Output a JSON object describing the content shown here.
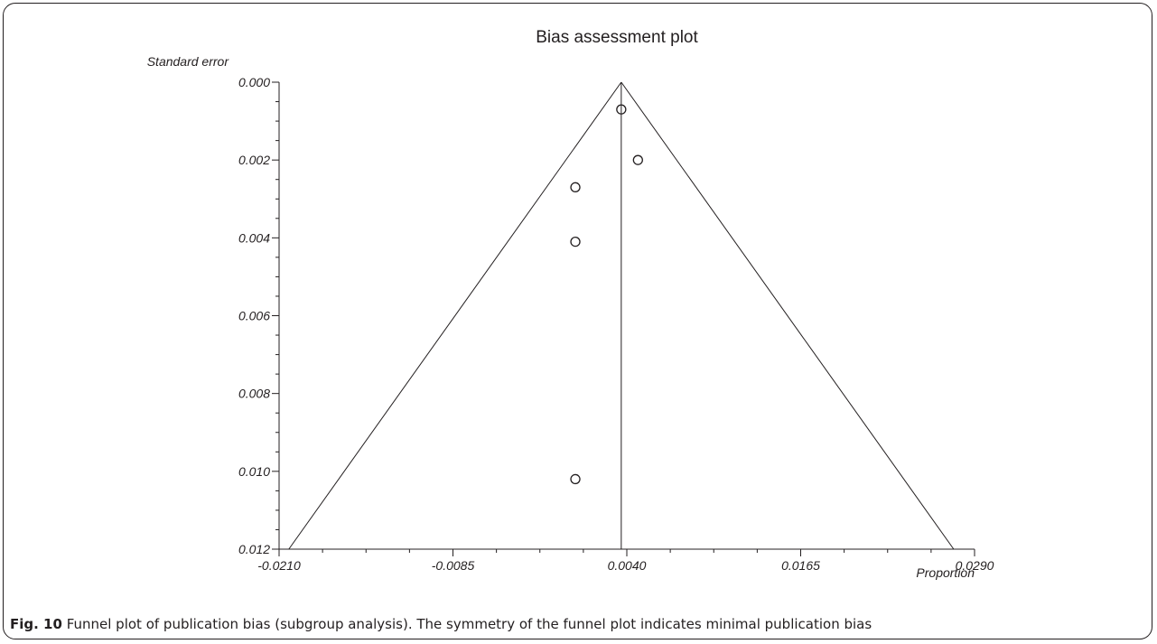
{
  "chart_data": {
    "type": "scatter",
    "title": "Bias assessment plot",
    "xlabel": "Proportion",
    "ylabel": "Standard error",
    "xlim": [
      -0.021,
      0.029
    ],
    "ylim": [
      0.0,
      0.012
    ],
    "y_inverted": true,
    "x_ticks": [
      "-0.0210",
      "-0.0085",
      "0.0040",
      "0.0165",
      "0.0290"
    ],
    "y_ticks": [
      "0.000",
      "0.002",
      "0.004",
      "0.006",
      "0.008",
      "0.010",
      "0.012"
    ],
    "pooled_estimate": 0.0036,
    "funnel_base": [
      -0.0203,
      0.0275
    ],
    "points": [
      {
        "x": 0.0036,
        "y": 0.0007
      },
      {
        "x": 0.0048,
        "y": 0.002
      },
      {
        "x": 0.0003,
        "y": 0.0027
      },
      {
        "x": 0.0003,
        "y": 0.0041
      },
      {
        "x": 0.0003,
        "y": 0.0102
      }
    ],
    "marker": "open-circle",
    "grid": false
  },
  "caption": {
    "label": "Fig. 10",
    "text": " Funnel plot of publication bias (subgroup analysis). The symmetry of the funnel plot indicates minimal publication bias"
  }
}
